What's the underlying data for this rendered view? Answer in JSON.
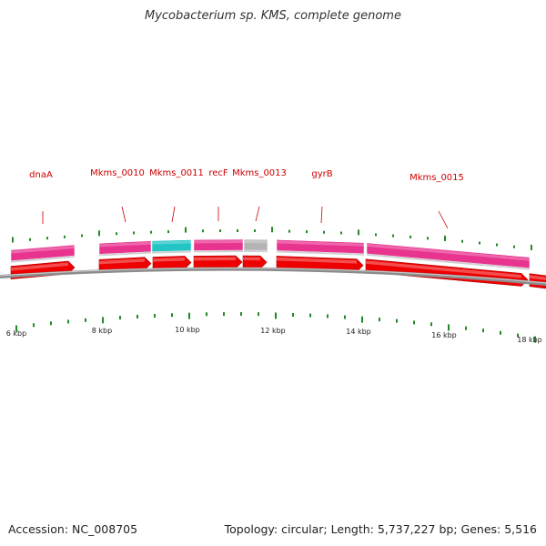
{
  "header": {
    "title": "Mycobacterium sp. KMS, complete genome"
  },
  "footer": {
    "accession": "Accession: NC_008705",
    "summary": "Topology: circular; Length: 5,737,227 bp; Genes: 5,516"
  },
  "colors": {
    "gene_pink": "#e8338f",
    "gene_cyan": "#22c4c4",
    "gene_gray": "#b4b4b4",
    "cds_red": "#ee0000",
    "label_red": "#cc0000",
    "tick_green": "#228b22",
    "backbone_gray": "#8c8c8c"
  },
  "genes": [
    {
      "label": "dnaA"
    },
    {
      "label": "Mkms_0010"
    },
    {
      "label": "Mkms_0011"
    },
    {
      "label": "recF"
    },
    {
      "label": "Mkms_0013"
    },
    {
      "label": "gyrB"
    },
    {
      "label": "Mkms_0015"
    }
  ],
  "gene_bars": [
    {
      "color": "gene_pink"
    },
    {
      "color": "gene_pink"
    },
    {
      "color": "gene_cyan"
    },
    {
      "color": "gene_pink"
    },
    {
      "color": "gene_gray"
    },
    {
      "color": "gene_pink"
    },
    {
      "color": "gene_pink"
    }
  ],
  "scale": {
    "unit": "kbp",
    "ticks": [
      "6 kbp",
      "8 kbp",
      "10 kbp",
      "12 kbp",
      "14 kbp",
      "16 kbp",
      "18 kbp"
    ]
  }
}
